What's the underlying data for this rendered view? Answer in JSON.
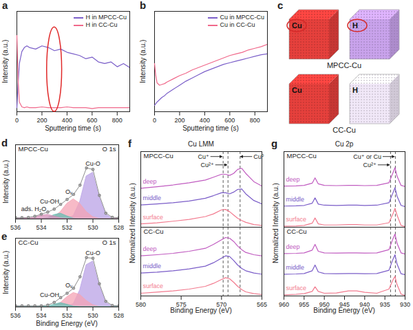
{
  "chart_data": [
    {
      "panel": "a",
      "type": "line",
      "x_label": "Sputtering time (s)",
      "y_label": "Intensity (a.u.)",
      "x": [
        0,
        10,
        20,
        40,
        60,
        80,
        100,
        150,
        200,
        250,
        300,
        350,
        400,
        450,
        500,
        550,
        600,
        650,
        700,
        750,
        800,
        850,
        900
      ],
      "xlim": [
        0,
        900
      ],
      "xticks": [
        0,
        200,
        400,
        600,
        800
      ],
      "ylim": [
        0,
        1.25
      ],
      "tick_labels": "x",
      "legend": "upper right",
      "highlight": {
        "shape": "ellipse",
        "xrange": [
          240,
          360
        ],
        "yrange": [
          0,
          1.05
        ],
        "color": "#e02828"
      },
      "series": [
        {
          "name": "H in MPCC-Cu",
          "color": "#7b5fc9",
          "values": [
            0.05,
            0.35,
            0.6,
            0.75,
            0.8,
            0.82,
            0.8,
            0.78,
            0.82,
            0.8,
            0.76,
            0.78,
            0.74,
            0.72,
            0.7,
            0.66,
            0.68,
            0.62,
            0.6,
            0.62,
            0.56,
            0.6,
            0.55
          ]
        },
        {
          "name": "H in CC-Cu",
          "color": "#f0688a",
          "values": [
            0.95,
            0.4,
            0.12,
            0.06,
            0.05,
            0.06,
            0.05,
            0.05,
            0.06,
            0.05,
            0.05,
            0.05,
            0.06,
            0.05,
            0.05,
            0.05,
            0.04,
            0.05,
            0.05,
            0.05,
            0.05,
            0.05,
            0.05
          ]
        }
      ]
    },
    {
      "panel": "b",
      "type": "line",
      "x_label": "Sputtering time (s)",
      "y_label": "Intensity (a.u.)",
      "x": [
        0,
        10,
        20,
        40,
        60,
        80,
        100,
        150,
        200,
        250,
        300,
        350,
        400,
        450,
        500,
        550,
        600,
        650,
        700,
        750,
        800,
        850,
        900
      ],
      "xlim": [
        0,
        900
      ],
      "xticks": [
        0,
        200,
        400,
        600,
        800
      ],
      "ylim": [
        0,
        1.25
      ],
      "tick_labels": "x",
      "legend": "upper right",
      "series": [
        {
          "name": "Cu in MPCC-Cu",
          "color": "#7b5fc9",
          "values": [
            0.08,
            0.1,
            0.12,
            0.15,
            0.18,
            0.2,
            0.23,
            0.28,
            0.33,
            0.38,
            0.42,
            0.46,
            0.5,
            0.53,
            0.56,
            0.59,
            0.61,
            0.63,
            0.65,
            0.67,
            0.69,
            0.71,
            0.72
          ]
        },
        {
          "name": "Cu in CC-Cu",
          "color": "#f0688a",
          "values": [
            0.6,
            0.45,
            0.36,
            0.33,
            0.34,
            0.35,
            0.37,
            0.41,
            0.45,
            0.48,
            0.52,
            0.55,
            0.58,
            0.61,
            0.64,
            0.67,
            0.7,
            0.72,
            0.74,
            0.77,
            0.79,
            0.81,
            0.84
          ]
        }
      ]
    },
    {
      "panel": "c",
      "type": "3d_map",
      "cubes": [
        {
          "sample": "MPCC-Cu",
          "label": "Cu",
          "color": "#e6403c",
          "highlight": true
        },
        {
          "sample": "MPCC-Cu",
          "label": "H",
          "color": "#c9a3ec",
          "highlight": true
        },
        {
          "sample": "CC-Cu",
          "label": "Cu",
          "color": "#e6403c"
        },
        {
          "sample": "CC-Cu",
          "label": "H",
          "color": "#f1e8f8"
        }
      ]
    },
    {
      "panel": "d",
      "type": "area",
      "title": "O 1s",
      "subtitle": "MPCC-Cu",
      "y_label": "Intensity (a.u.)",
      "x": [
        536,
        535.5,
        535,
        534.5,
        534,
        533.5,
        533,
        532.5,
        532,
        531.5,
        531,
        530.5,
        530,
        529.5,
        529,
        528.5,
        528
      ],
      "xlim": [
        536,
        528
      ],
      "xticks": [
        536,
        534,
        532,
        530,
        528
      ],
      "ylim": [
        0,
        1.2
      ],
      "tick_labels": "x",
      "series": [
        {
          "name": "Cu-O",
          "type": "area",
          "color": "#b9a2e6",
          "values": [
            0,
            0,
            0,
            0,
            0,
            0,
            0,
            0,
            0.004,
            0.049,
            0.278,
            0.69,
            0.749,
            0.356,
            0.074,
            0.007,
            0
          ]
        },
        {
          "name": "Oᵥ",
          "type": "area",
          "color": "#f4a3b4",
          "values": [
            0,
            0,
            0,
            0,
            0,
            0.005,
            0.032,
            0.115,
            0.248,
            0.32,
            0.248,
            0.115,
            0.032,
            0.005,
            0,
            0,
            0
          ]
        },
        {
          "name": "Cu-OH",
          "type": "area",
          "color": "#66bdb3",
          "values": [
            0,
            0,
            0,
            0,
            0.002,
            0.018,
            0.065,
            0.088,
            0.044,
            0.008,
            0,
            0,
            0,
            0,
            0,
            0,
            0
          ]
        },
        {
          "name": "ads. H₂O",
          "type": "area",
          "color": "#d58fb8",
          "values": [
            0,
            0,
            0.005,
            0.023,
            0.056,
            0.069,
            0.042,
            0.013,
            0,
            0,
            0,
            0,
            0,
            0,
            0,
            0,
            0
          ]
        },
        {
          "type": "line",
          "marker": "circle",
          "color": "#8c8c8c",
          "values": [
            0.02,
            0.02,
            0.025,
            0.043,
            0.078,
            0.112,
            0.159,
            0.236,
            0.316,
            0.397,
            0.546,
            0.825,
            0.801,
            0.381,
            0.094,
            0.027,
            0.02
          ]
        }
      ]
    },
    {
      "panel": "e",
      "type": "area",
      "title": "O 1s",
      "subtitle": "CC-Cu",
      "x_label": "Binding Energy (eV)",
      "y_label": "Intensity (a.u.)",
      "x": [
        536,
        535.5,
        535,
        534.5,
        534,
        533.5,
        533,
        532.5,
        532,
        531.5,
        531,
        530.5,
        530,
        529.5,
        529,
        528.5,
        528
      ],
      "xlim": [
        536,
        528
      ],
      "xticks": [
        536,
        534,
        532,
        530,
        528
      ],
      "ylim": [
        0,
        1.2
      ],
      "tick_labels": "x",
      "series": [
        {
          "name": "Cu-O",
          "type": "area",
          "color": "#b9a2e6",
          "values": [
            0,
            0,
            0,
            0,
            0,
            0,
            0,
            0,
            0.004,
            0.052,
            0.295,
            0.733,
            0.796,
            0.378,
            0.079,
            0.007,
            0
          ]
        },
        {
          "name": "Oᵥ",
          "type": "area",
          "color": "#f4a3b4",
          "values": [
            0,
            0,
            0,
            0,
            0,
            0.003,
            0.018,
            0.073,
            0.173,
            0.247,
            0.212,
            0.109,
            0.034,
            0.006,
            0,
            0,
            0
          ]
        },
        {
          "name": "Cu-OH",
          "type": "area",
          "color": "#66bdb3",
          "values": [
            0,
            0,
            0,
            0,
            0.001,
            0.009,
            0.042,
            0.07,
            0.042,
            0.009,
            0,
            0,
            0,
            0,
            0,
            0,
            0
          ]
        },
        {
          "type": "line",
          "marker": "circle",
          "color": "#8c8c8c",
          "values": [
            0.02,
            0.02,
            0.02,
            0.02,
            0.021,
            0.032,
            0.08,
            0.163,
            0.239,
            0.328,
            0.527,
            0.862,
            0.85,
            0.404,
            0.099,
            0.027,
            0.02
          ]
        }
      ]
    },
    {
      "panel": "f",
      "type": "line",
      "title": "Cu LMM",
      "x_label": "Binding Energy (eV)",
      "y_label": "Normalized Intensity (a.u.)",
      "x": [
        580,
        578,
        576,
        574,
        572,
        571,
        570,
        569.5,
        569,
        568.5,
        568,
        567.5,
        567,
        566,
        565
      ],
      "xlim": [
        580,
        565
      ],
      "xticks": [
        580,
        575,
        570,
        565
      ],
      "tick_labels": "x",
      "subplots": [
        {
          "subtitle": "MPCC-Cu",
          "ylim": [
            0,
            3.4
          ],
          "reference_lines": [
            {
              "value": 569.8,
              "label": "Cu⁺",
              "line_style": "dashed"
            },
            {
              "value": 569.2,
              "label": "Cu²⁺",
              "line_style": "dashed"
            },
            {
              "value": 567.7,
              "label": "Cu⁰",
              "line_style": "dashed"
            }
          ],
          "series": [
            {
              "name": "deep",
              "color": "#c05bc0",
              "values": [
                1.75,
                1.82,
                1.9,
                2.0,
                2.12,
                2.25,
                2.38,
                2.38,
                2.33,
                2.42,
                2.6,
                2.65,
                2.42,
                2.05,
                1.85
              ]
            },
            {
              "name": "middle",
              "color": "#7a5cc8",
              "values": [
                1.0,
                1.05,
                1.1,
                1.18,
                1.3,
                1.42,
                1.55,
                1.55,
                1.5,
                1.58,
                1.7,
                1.72,
                1.5,
                1.2,
                1.05
              ]
            },
            {
              "name": "surface",
              "color": "#f27a8e",
              "values": [
                0.15,
                0.2,
                0.27,
                0.35,
                0.48,
                0.6,
                0.78,
                0.8,
                0.7,
                0.55,
                0.4,
                0.3,
                0.22,
                0.12,
                0.08
              ]
            }
          ]
        },
        {
          "subtitle": "CC-Cu",
          "ylim": [
            0,
            3.0
          ],
          "reference_lines": [
            {
              "value": 569.8,
              "line_style": "dashed"
            },
            {
              "value": 569.2,
              "line_style": "dashed"
            },
            {
              "value": 567.7,
              "line_style": "dashed"
            }
          ],
          "series": [
            {
              "name": "deep",
              "color": "#c05bc0",
              "values": [
                1.75,
                1.8,
                1.86,
                1.95,
                2.08,
                2.25,
                2.45,
                2.55,
                2.52,
                2.38,
                2.18,
                2.02,
                1.9,
                1.8,
                1.75
              ]
            },
            {
              "name": "middle",
              "color": "#7a5cc8",
              "values": [
                1.0,
                1.04,
                1.1,
                1.18,
                1.3,
                1.45,
                1.65,
                1.75,
                1.72,
                1.55,
                1.35,
                1.2,
                1.1,
                1.0,
                0.95
              ]
            },
            {
              "name": "surface",
              "color": "#f27a8e",
              "values": [
                0.12,
                0.17,
                0.22,
                0.3,
                0.42,
                0.55,
                0.72,
                0.8,
                0.75,
                0.6,
                0.42,
                0.28,
                0.18,
                0.1,
                0.06
              ]
            }
          ]
        }
      ]
    },
    {
      "panel": "g",
      "type": "line",
      "title": "Cu 2p",
      "x_label": "Binding Energy (eV)",
      "y_label": "Normalized Intensity (a.u.)",
      "x": [
        960,
        957,
        955,
        953,
        952.3,
        951.5,
        950,
        947,
        944,
        942,
        940,
        937,
        934,
        933,
        932.5,
        932,
        931,
        930
      ],
      "xlim": [
        960,
        930
      ],
      "xticks": [
        960,
        955,
        950,
        945,
        940,
        935,
        930
      ],
      "tick_labels": "x",
      "subplots": [
        {
          "subtitle": "MPCC-Cu",
          "ylim": [
            0,
            3.4
          ],
          "reference_lines": [
            {
              "value": 932.4,
              "label": "Cu⁺ or Cu",
              "line_style": "dashed"
            },
            {
              "value": 933.6,
              "label": "Cu²⁺",
              "line_style": "dashed"
            }
          ],
          "series": [
            {
              "name": "deep",
              "color": "#c05bc0",
              "values": [
                1.85,
                1.86,
                1.88,
                1.98,
                2.22,
                1.95,
                1.88,
                1.87,
                1.88,
                1.88,
                1.87,
                1.88,
                2.0,
                2.45,
                2.68,
                2.3,
                1.88,
                1.83
              ]
            },
            {
              "name": "middle",
              "color": "#7a5cc8",
              "values": [
                0.95,
                0.96,
                0.98,
                1.08,
                1.32,
                1.04,
                0.99,
                0.98,
                0.99,
                0.99,
                0.98,
                0.99,
                1.1,
                1.55,
                1.78,
                1.4,
                0.98,
                0.93
              ]
            },
            {
              "name": "surface",
              "color": "#f27a8e",
              "values": [
                0.05,
                0.06,
                0.08,
                0.18,
                0.42,
                0.15,
                0.1,
                0.1,
                0.12,
                0.12,
                0.1,
                0.1,
                0.2,
                0.6,
                0.85,
                0.55,
                0.08,
                0.03
              ]
            }
          ]
        },
        {
          "subtitle": "CC-Cu",
          "ylim": [
            0,
            3.0
          ],
          "reference_lines": [
            {
              "value": 932.4,
              "line_style": "dashed"
            },
            {
              "value": 933.6,
              "line_style": "dashed"
            }
          ],
          "series": [
            {
              "name": "deep",
              "color": "#c05bc0",
              "values": [
                1.85,
                1.86,
                1.88,
                2.0,
                2.25,
                1.95,
                1.88,
                1.87,
                1.88,
                1.88,
                1.87,
                1.88,
                2.02,
                2.5,
                2.7,
                2.3,
                1.88,
                1.83
              ]
            },
            {
              "name": "middle",
              "color": "#7a5cc8",
              "values": [
                0.95,
                0.96,
                0.98,
                1.1,
                1.35,
                1.05,
                0.98,
                0.97,
                0.98,
                0.98,
                0.97,
                0.98,
                1.12,
                1.6,
                1.8,
                1.4,
                0.97,
                0.93
              ]
            },
            {
              "name": "surface",
              "color": "#f27a8e",
              "values": [
                0.05,
                0.07,
                0.1,
                0.2,
                0.4,
                0.2,
                0.12,
                0.13,
                0.22,
                0.22,
                0.16,
                0.12,
                0.3,
                0.7,
                0.85,
                0.5,
                0.08,
                0.03
              ]
            }
          ]
        }
      ]
    }
  ]
}
